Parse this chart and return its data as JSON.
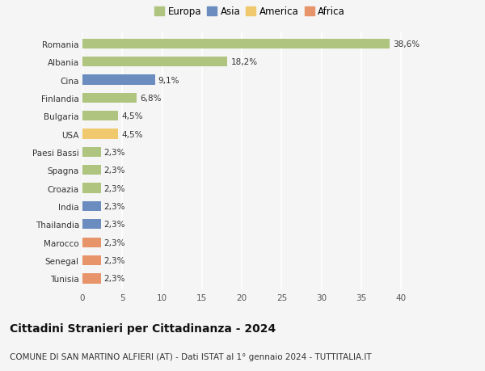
{
  "countries": [
    "Romania",
    "Albania",
    "Cina",
    "Finlandia",
    "Bulgaria",
    "USA",
    "Paesi Bassi",
    "Spagna",
    "Croazia",
    "India",
    "Thailandia",
    "Marocco",
    "Senegal",
    "Tunisia"
  ],
  "values": [
    38.6,
    18.2,
    9.1,
    6.8,
    4.5,
    4.5,
    2.3,
    2.3,
    2.3,
    2.3,
    2.3,
    2.3,
    2.3,
    2.3
  ],
  "labels": [
    "38,6%",
    "18,2%",
    "9,1%",
    "6,8%",
    "4,5%",
    "4,5%",
    "2,3%",
    "2,3%",
    "2,3%",
    "2,3%",
    "2,3%",
    "2,3%",
    "2,3%",
    "2,3%"
  ],
  "colors": [
    "#afc47e",
    "#afc47e",
    "#6b8cbf",
    "#afc47e",
    "#afc47e",
    "#f0c96e",
    "#afc47e",
    "#afc47e",
    "#afc47e",
    "#6b8cbf",
    "#6b8cbf",
    "#e8946a",
    "#e8946a",
    "#e8946a"
  ],
  "legend_labels": [
    "Europa",
    "Asia",
    "America",
    "Africa"
  ],
  "legend_colors": [
    "#afc47e",
    "#6b8cbf",
    "#f0c96e",
    "#e8946a"
  ],
  "xlim": [
    0,
    42
  ],
  "xticks": [
    0,
    5,
    10,
    15,
    20,
    25,
    30,
    35,
    40
  ],
  "title": "Cittadini Stranieri per Cittadinanza - 2024",
  "subtitle": "COMUNE DI SAN MARTINO ALFIERI (AT) - Dati ISTAT al 1° gennaio 2024 - TUTTITALIA.IT",
  "background_color": "#f5f5f5",
  "grid_color": "#ffffff",
  "bar_height": 0.55,
  "title_fontsize": 10,
  "subtitle_fontsize": 7.5,
  "label_fontsize": 7.5,
  "tick_fontsize": 7.5,
  "legend_fontsize": 8.5
}
